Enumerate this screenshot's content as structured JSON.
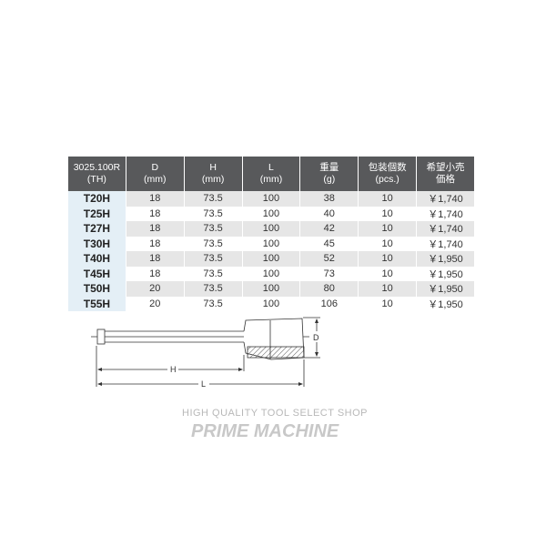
{
  "table": {
    "headers": [
      [
        "3025.100R",
        "(TH)"
      ],
      [
        "D",
        "(mm)"
      ],
      [
        "H",
        "(mm)"
      ],
      [
        "L",
        "(mm)"
      ],
      [
        "重量",
        "(g)"
      ],
      [
        "包装個数",
        "(pcs.)"
      ],
      [
        "希望小売",
        "価格"
      ]
    ],
    "rows": [
      [
        "T20H",
        "18",
        "73.5",
        "100",
        "38",
        "10",
        "￥1,740"
      ],
      [
        "T25H",
        "18",
        "73.5",
        "100",
        "40",
        "10",
        "￥1,740"
      ],
      [
        "T27H",
        "18",
        "73.5",
        "100",
        "42",
        "10",
        "￥1,740"
      ],
      [
        "T30H",
        "18",
        "73.5",
        "100",
        "45",
        "10",
        "￥1,740"
      ],
      [
        "T40H",
        "18",
        "73.5",
        "100",
        "52",
        "10",
        "￥1,950"
      ],
      [
        "T45H",
        "18",
        "73.5",
        "100",
        "73",
        "10",
        "￥1,950"
      ],
      [
        "T50H",
        "20",
        "73.5",
        "100",
        "80",
        "10",
        "￥1,950"
      ],
      [
        "T55H",
        "20",
        "73.5",
        "100",
        "106",
        "10",
        "￥1,950"
      ]
    ]
  },
  "watermark": {
    "tagline": "HIGH QUALITY TOOL SELECT SHOP",
    "brand": "PRIME MACHINE"
  },
  "diagram": {
    "label_d": "D",
    "label_h": "H",
    "label_l": "L"
  }
}
